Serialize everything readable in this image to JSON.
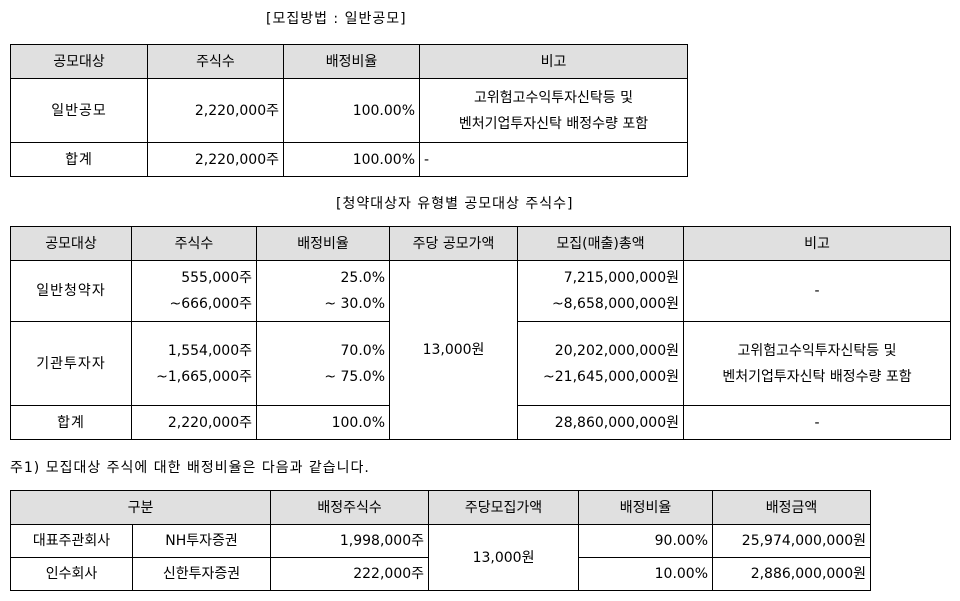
{
  "caption1": "[모집방법 : 일반공모]",
  "table1": {
    "headers": [
      "공모대상",
      "주식수",
      "배정비율",
      "비고"
    ],
    "rows": [
      {
        "target": "일반공모",
        "shares": "2,220,000주",
        "ratio": "100.00%",
        "note1": "고위험고수익투자신탁등 및",
        "note2": "벤처기업투자신탁 배정수량 포함"
      },
      {
        "target": "합계",
        "shares": "2,220,000주",
        "ratio": "100.00%",
        "note": "-"
      }
    ]
  },
  "caption2": "[청약대상자 유형별 공모대상 주식수]",
  "table2": {
    "headers": [
      "공모대상",
      "주식수",
      "배정비율",
      "주당 공모가액",
      "모집(매출)총액",
      "비고"
    ],
    "price": "13,000원",
    "rows": [
      {
        "target": "일반청약자",
        "shares1": "555,000주",
        "shares2": "~666,000주",
        "ratio1": "25.0%",
        "ratio2": "~ 30.0%",
        "total1": "7,215,000,000원",
        "total2": "~8,658,000,000원",
        "note": "-"
      },
      {
        "target": "기관투자자",
        "shares1": "1,554,000주",
        "shares2": "~1,665,000주",
        "ratio1": "70.0%",
        "ratio2": "~ 75.0%",
        "total1": "20,202,000,000원",
        "total2": "~21,645,000,000원",
        "note1": "고위험고수익투자신탁등 및",
        "note2": "벤처기업투자신탁 배정수량 포함"
      },
      {
        "target": "합계",
        "shares": "2,220,000주",
        "ratio": "100.0%",
        "total": "28,860,000,000원",
        "note": "-"
      }
    ]
  },
  "note": "주1) 모집대상 주식에 대한 배정비율은 다음과 같습니다.",
  "table3": {
    "headers": [
      "구분",
      "배정주식수",
      "주당모집가액",
      "배정비율",
      "배정금액"
    ],
    "price": "13,000원",
    "rows": [
      {
        "role": "대표주관회사",
        "company": "NH투자증권",
        "shares": "1,998,000주",
        "ratio": "90.00%",
        "amount": "25,974,000,000원"
      },
      {
        "role": "인수회사",
        "company": "신한투자증권",
        "shares": "222,000주",
        "ratio": "10.00%",
        "amount": "2,886,000,000원"
      }
    ]
  }
}
